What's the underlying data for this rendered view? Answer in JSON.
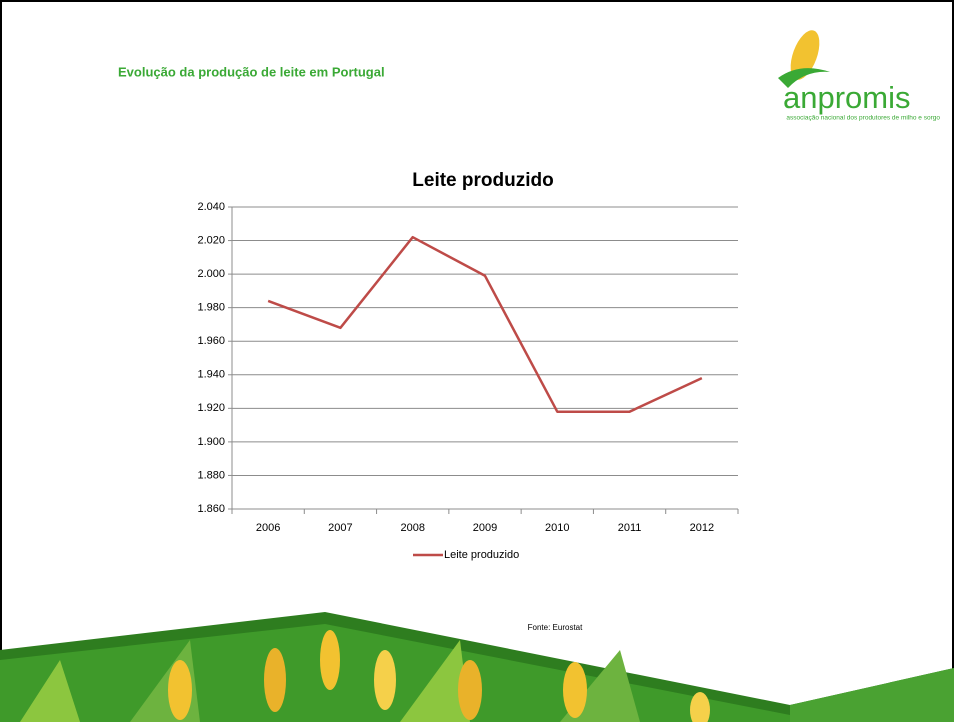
{
  "slide_title": "Evolução da produção de leite em Portugal",
  "logo": {
    "name": "anpromis",
    "tagline": "associação nacional dos produtores de milho e sorgo"
  },
  "source": "Fonte: Eurostat",
  "chart_data": {
    "type": "line",
    "title": "Leite produzido",
    "categories": [
      "2006",
      "2007",
      "2008",
      "2009",
      "2010",
      "2011",
      "2012"
    ],
    "series": [
      {
        "name": "Leite produzido",
        "color": "#be4b48",
        "values": [
          1984,
          1968,
          2022,
          1999,
          1918,
          1918,
          1938
        ]
      }
    ],
    "ylim": [
      1860,
      2040
    ],
    "yticks": [
      {
        "value": 1860,
        "label": "1.860"
      },
      {
        "value": 1880,
        "label": "1.880"
      },
      {
        "value": 1900,
        "label": "1.900"
      },
      {
        "value": 1920,
        "label": "1.920"
      },
      {
        "value": 1940,
        "label": "1.940"
      },
      {
        "value": 1960,
        "label": "1.960"
      },
      {
        "value": 1980,
        "label": "1.980"
      },
      {
        "value": 2000,
        "label": "2.000"
      },
      {
        "value": 2020,
        "label": "2.020"
      },
      {
        "value": 2040,
        "label": "2.040"
      }
    ],
    "grid": true,
    "legend": "bottom"
  }
}
